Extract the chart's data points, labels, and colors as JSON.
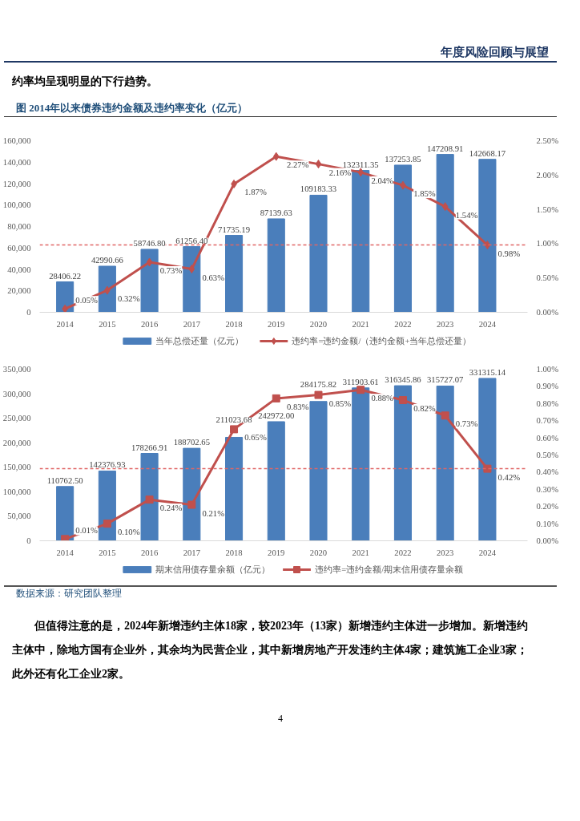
{
  "chart_data": [
    {
      "type": "bar",
      "title": "图 2014年以来债券违约金额及违约率变化（亿元）",
      "annotations": [
        "年度风险回顾与展望",
        "约率均呈现明显的下行趋势。"
      ],
      "categories": [
        "2014",
        "2015",
        "2016",
        "2017",
        "2018",
        "2019",
        "2020",
        "2021",
        "2022",
        "2023",
        "2024"
      ],
      "series": [
        {
          "name": "当年总偿还量（亿元）",
          "type": "bar",
          "color": "#4a7ebb",
          "values": [
            28406.22,
            42990.66,
            58746.8,
            61256.4,
            71735.19,
            87139.63,
            109183.33,
            132311.35,
            137253.85,
            147208.91,
            142668.17
          ],
          "value_labels": [
            "28406.22",
            "42990.66",
            "58746.80",
            "61256.40",
            "71735.19",
            "87139.63",
            "109183.33",
            "132311.35",
            "137253.85",
            "147208.91",
            "142668.17"
          ]
        },
        {
          "name": "违约率=违约金额/（违约金额+当年总偿还量）",
          "type": "line",
          "axis": "y2",
          "marker": "diamond",
          "color": "#c0504d",
          "values": [
            0.05,
            0.32,
            0.73,
            0.63,
            1.87,
            2.27,
            2.16,
            2.04,
            1.85,
            1.54,
            0.98
          ],
          "value_labels": [
            "0.05%",
            "0.32%",
            "0.73%",
            "0.63%",
            "1.87%",
            "2.27%",
            "2.16%",
            "2.04%",
            "1.85%",
            "1.54%",
            "0.98%"
          ]
        }
      ],
      "ylim": [
        0,
        160000
      ],
      "yticks": [
        0,
        {
          "value": 20000,
          "label": "20,000"
        },
        {
          "value": 40000,
          "label": "40,000"
        },
        {
          "value": 60000,
          "label": "60,000"
        },
        {
          "value": 80000,
          "label": "80,000"
        },
        {
          "value": 100000,
          "label": "100,000"
        },
        {
          "value": 120000,
          "label": "120,000"
        },
        {
          "value": 140000,
          "label": "140,000"
        },
        {
          "value": 160000,
          "label": "160,000"
        }
      ],
      "y2lim": [
        0,
        2.5
      ],
      "y2ticks": [
        {
          "value": 0,
          "label": "0.00%"
        },
        {
          "value": 0.5,
          "label": "0.50%"
        },
        {
          "value": 1.0,
          "label": "1.00%"
        },
        {
          "value": 1.5,
          "label": "1.50%"
        },
        {
          "value": 2.0,
          "label": "2.00%"
        },
        {
          "value": 2.5,
          "label": "2.50%"
        }
      ],
      "ref_lines": [
        {
          "axis": "y2",
          "value": 0.98,
          "color": "#e06666",
          "line_style": "dashed"
        }
      ],
      "legend": "bottom"
    },
    {
      "type": "bar",
      "annotations": [
        "数据来源：研究团队整理",
        "但值得注意的是，2024年新增违约主体18家，较2023年（13家）新增违约主体进一步增加。新增违约主体中，除地方国有企业外，其余均为民营企业，其中新增房地产开发违约主体4家；建筑施工企业3家；此外还有化工企业2家。",
        "4"
      ],
      "categories": [
        "2014",
        "2015",
        "2016",
        "2017",
        "2018",
        "2019",
        "2020",
        "2021",
        "2022",
        "2023",
        "2024"
      ],
      "series": [
        {
          "name": "期末信用债存量余额（亿元）",
          "type": "bar",
          "color": "#4a7ebb",
          "values": [
            110762.5,
            142376.93,
            178266.91,
            188702.65,
            211023.68,
            242972.0,
            284175.82,
            311903.61,
            316345.86,
            315727.07,
            331315.14
          ],
          "value_labels": [
            "110762.50",
            "142376.93",
            "178266.91",
            "188702.65",
            "211023.68",
            "242972.00",
            "284175.82",
            "311903.61",
            "316345.86",
            "315727.07",
            "331315.14"
          ]
        },
        {
          "name": "违约率=违约金额/期末信用债存量余额",
          "type": "line",
          "axis": "y2",
          "marker": "square",
          "color": "#c0504d",
          "values": [
            0.01,
            0.1,
            0.24,
            0.21,
            0.65,
            0.83,
            0.85,
            0.88,
            0.82,
            0.73,
            0.42
          ],
          "value_labels": [
            "0.01%",
            "0.10%",
            "0.24%",
            "0.21%",
            "0.65%",
            "0.83%",
            "0.85%",
            "0.88%",
            "0.82%",
            "0.73%",
            "0.42%"
          ]
        }
      ],
      "ylim": [
        0,
        350000
      ],
      "yticks": [
        0,
        {
          "value": 50000,
          "label": "50,000"
        },
        {
          "value": 100000,
          "label": "100,000"
        },
        {
          "value": 150000,
          "label": "150,000"
        },
        {
          "value": 200000,
          "label": "200,000"
        },
        {
          "value": 250000,
          "label": "250,000"
        },
        {
          "value": 300000,
          "label": "300,000"
        },
        {
          "value": 350000,
          "label": "350,000"
        }
      ],
      "y2lim": [
        0,
        1.0
      ],
      "y2ticks": [
        {
          "value": 0,
          "label": "0.00%"
        },
        {
          "value": 0.1,
          "label": "0.10%"
        },
        {
          "value": 0.2,
          "label": "0.20%"
        },
        {
          "value": 0.3,
          "label": "0.30%"
        },
        {
          "value": 0.4,
          "label": "0.40%"
        },
        {
          "value": 0.5,
          "label": "0.50%"
        },
        {
          "value": 0.6,
          "label": "0.60%"
        },
        {
          "value": 0.7,
          "label": "0.70%"
        },
        {
          "value": 0.8,
          "label": "0.80%"
        },
        {
          "value": 0.9,
          "label": "0.90%"
        },
        {
          "value": 1.0,
          "label": "1.00%"
        }
      ],
      "ref_lines": [
        {
          "axis": "y2",
          "value": 0.42,
          "color": "#e06666",
          "line_style": "dashed"
        }
      ],
      "legend": "bottom"
    }
  ]
}
